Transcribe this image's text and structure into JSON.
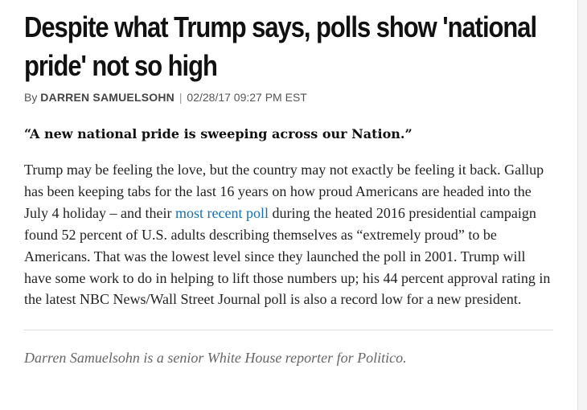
{
  "article": {
    "headline": "Despite what Trump says, polls show 'national pride' not so high",
    "byline": {
      "prefix": "By",
      "author": "DARREN SAMUELSOHN",
      "separator": "|",
      "timestamp": "02/28/17 09:27 PM EST"
    },
    "pull_quote": "“A new national pride is sweeping across our Nation.”",
    "body": {
      "before_link": "Trump may be feeling the love, but the country may not exactly be feeling it back. Gallup has been keeping tabs for the last 16 years on how proud Americans are headed into the July 4 holiday – and their ",
      "link_text": "most recent poll",
      "after_link": " during the heated 2016 presidential campaign found 52 percent of U.S. adults describing themselves as “extremely proud” to be Americans. That was the lowest level since they launched the poll in 2001. Trump will have some work to do in helping to lift those numbers up; his 44 percent approval rating in the latest NBC News/Wall Street Journal poll is also a record low for a new president."
    },
    "author_note": "Darren Samuelsohn is a senior White House reporter for Politico.",
    "colors": {
      "link": "#1a6fa8",
      "headline": "#111111",
      "body": "#222222",
      "note": "#666666"
    }
  }
}
